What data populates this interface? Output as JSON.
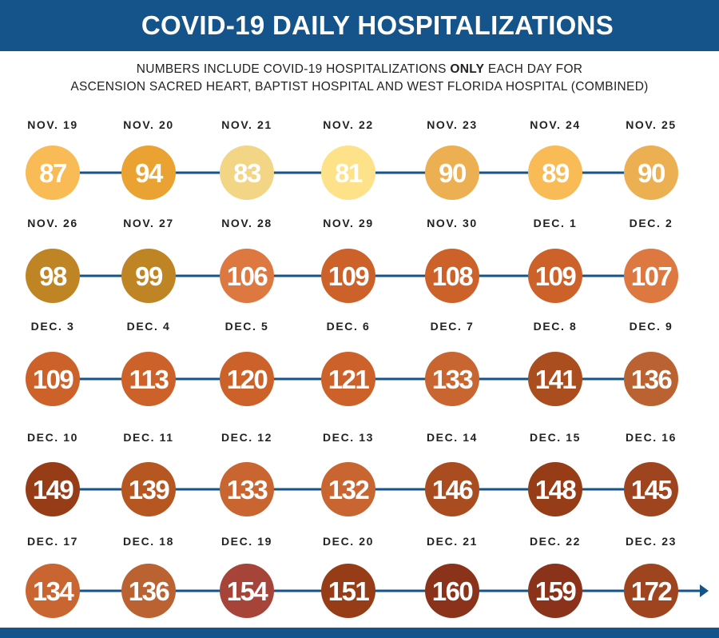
{
  "header": {
    "title": "COVID-19 DAILY HOSPITALIZATIONS"
  },
  "subtitle": {
    "line1_before": "NUMBERS INCLUDE COVID-19 HOSPITALIZATIONS ",
    "line1_bold": "ONLY",
    "line1_after": " EACH DAY FOR",
    "line2": "ASCENSION SACRED HEART, BAPTIST HOSPITAL AND WEST FLORIDA HOSPITAL (COMBINED)"
  },
  "colors": {
    "header_bg": "#15548a",
    "connector_line": "#15548a",
    "text_dark": "#222222",
    "value_text": "#ffffff"
  },
  "chart_data": {
    "type": "timeline",
    "title": "COVID-19 DAILY HOSPITALIZATIONS",
    "subtitle": "NUMBERS INCLUDE COVID-19 HOSPITALIZATIONS ONLY EACH DAY FOR ASCENSION SACRED HEART, BAPTIST HOSPITAL AND WEST FLORIDA HOSPITAL (COMBINED)",
    "rows": [
      {
        "points": [
          {
            "date": "NOV. 19",
            "value": 87,
            "color": "#f9bb56"
          },
          {
            "date": "NOV. 20",
            "value": 94,
            "color": "#eaa333"
          },
          {
            "date": "NOV. 21",
            "value": 83,
            "color": "#f2d585"
          },
          {
            "date": "NOV. 22",
            "value": 81,
            "color": "#fde28a"
          },
          {
            "date": "NOV. 23",
            "value": 90,
            "color": "#ecb052"
          },
          {
            "date": "NOV. 24",
            "value": 89,
            "color": "#f9bb56"
          },
          {
            "date": "NOV. 25",
            "value": 90,
            "color": "#ecb052"
          }
        ]
      },
      {
        "points": [
          {
            "date": "NOV. 26",
            "value": 98,
            "color": "#bf8424"
          },
          {
            "date": "NOV. 27",
            "value": 99,
            "color": "#bf8424"
          },
          {
            "date": "NOV. 28",
            "value": 106,
            "color": "#dd7841"
          },
          {
            "date": "NOV. 29",
            "value": 109,
            "color": "#cc6129"
          },
          {
            "date": "NOV. 30",
            "value": 108,
            "color": "#cc6129"
          },
          {
            "date": "DEC. 1",
            "value": 109,
            "color": "#cc6129"
          },
          {
            "date": "DEC. 2",
            "value": 107,
            "color": "#dd7841"
          }
        ]
      },
      {
        "points": [
          {
            "date": "DEC. 3",
            "value": 109,
            "color": "#cc6129"
          },
          {
            "date": "DEC. 4",
            "value": 113,
            "color": "#cc6129"
          },
          {
            "date": "DEC. 5",
            "value": 120,
            "color": "#cc6129"
          },
          {
            "date": "DEC. 6",
            "value": 121,
            "color": "#cc6129"
          },
          {
            "date": "DEC. 7",
            "value": 133,
            "color": "#c96530"
          },
          {
            "date": "DEC. 8",
            "value": 141,
            "color": "#ab4e1f"
          },
          {
            "date": "DEC. 9",
            "value": 136,
            "color": "#bb6232"
          }
        ]
      },
      {
        "points": [
          {
            "date": "DEC. 10",
            "value": 149,
            "color": "#963d18"
          },
          {
            "date": "DEC. 11",
            "value": 139,
            "color": "#b65722"
          },
          {
            "date": "DEC. 12",
            "value": 133,
            "color": "#c96530"
          },
          {
            "date": "DEC. 13",
            "value": 132,
            "color": "#c96530"
          },
          {
            "date": "DEC. 14",
            "value": 146,
            "color": "#a94d20"
          },
          {
            "date": "DEC. 15",
            "value": 148,
            "color": "#963d18"
          },
          {
            "date": "DEC. 16",
            "value": 145,
            "color": "#9e4520"
          }
        ]
      },
      {
        "points": [
          {
            "date": "DEC. 17",
            "value": 134,
            "color": "#c96530"
          },
          {
            "date": "DEC. 18",
            "value": 136,
            "color": "#bb6232"
          },
          {
            "date": "DEC. 19",
            "value": 154,
            "color": "#a6443a"
          },
          {
            "date": "DEC. 20",
            "value": 151,
            "color": "#963d18"
          },
          {
            "date": "DEC. 21",
            "value": 160,
            "color": "#8a331a"
          },
          {
            "date": "DEC. 22",
            "value": 159,
            "color": "#8a331a"
          },
          {
            "date": "DEC. 23",
            "value": 172,
            "color": "#9e4520"
          }
        ]
      }
    ],
    "final_row_arrow": true
  }
}
